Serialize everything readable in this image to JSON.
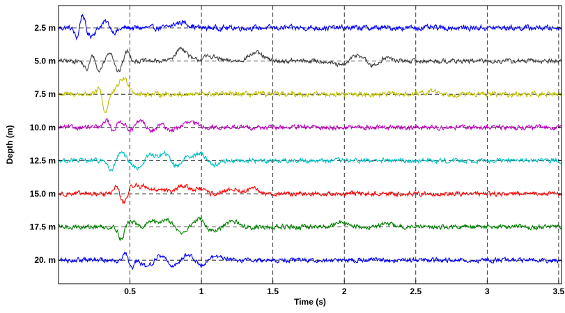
{
  "chart_data": {
    "type": "line",
    "title": "",
    "xlabel": "Time (s)",
    "ylabel": "Depth (m)",
    "xlim": [
      0,
      3.52
    ],
    "x_ticks": [
      0.5,
      1,
      1.5,
      2,
      2.5,
      3,
      3.5
    ],
    "x_tick_labels": [
      "0.5",
      "1",
      "1.5",
      "2",
      "2.5",
      "3",
      "3.5"
    ],
    "vertical_dashed_grid_at": [
      0.5,
      1,
      1.5,
      2,
      2.5,
      3,
      3.5
    ],
    "horizontal_dashed_baselines": true,
    "series": [
      {
        "label": "2.5 m",
        "color": "#0000ff",
        "peaks": [
          {
            "t": 0.16,
            "a": 1.5,
            "w": 0.02
          },
          {
            "t": 0.14,
            "a": -1.2,
            "w": 0.02
          },
          {
            "t": 0.22,
            "a": -0.5,
            "w": 0.03
          },
          {
            "t": 0.34,
            "a": 0.5,
            "w": 0.03
          },
          {
            "t": 0.38,
            "a": -0.4,
            "w": 0.03
          },
          {
            "t": 0.86,
            "a": 0.35,
            "w": 0.05
          }
        ],
        "noise": 0.14
      },
      {
        "label": "5.0 m",
        "color": "#404040",
        "peaks": [
          {
            "t": 0.2,
            "a": -0.6,
            "w": 0.02
          },
          {
            "t": 0.24,
            "a": 0.5,
            "w": 0.02
          },
          {
            "t": 0.28,
            "a": -0.7,
            "w": 0.02
          },
          {
            "t": 0.36,
            "a": 0.6,
            "w": 0.02
          },
          {
            "t": 0.42,
            "a": -0.7,
            "w": 0.02
          },
          {
            "t": 0.48,
            "a": 0.6,
            "w": 0.02
          },
          {
            "t": 0.86,
            "a": 0.8,
            "w": 0.04
          },
          {
            "t": 1.06,
            "a": 0.3,
            "w": 0.05
          },
          {
            "t": 1.38,
            "a": 0.5,
            "w": 0.05
          },
          {
            "t": 1.98,
            "a": -0.3,
            "w": 0.05
          },
          {
            "t": 2.1,
            "a": 0.45,
            "w": 0.05
          },
          {
            "t": 2.2,
            "a": -0.4,
            "w": 0.05
          },
          {
            "t": 2.28,
            "a": 0.3,
            "w": 0.04
          }
        ],
        "noise": 0.12
      },
      {
        "label": "7.5 m",
        "color": "#bfbf00",
        "peaks": [
          {
            "t": 0.3,
            "a": 0.9,
            "w": 0.02
          },
          {
            "t": 0.32,
            "a": -1.6,
            "w": 0.02
          },
          {
            "t": 0.44,
            "a": 0.7,
            "w": 0.03
          },
          {
            "t": 0.48,
            "a": 0.5,
            "w": 0.03
          },
          {
            "t": 2.62,
            "a": 0.2,
            "w": 0.04
          }
        ],
        "noise": 0.13
      },
      {
        "label": "10.0 m",
        "color": "#bf00bf",
        "peaks": [
          {
            "t": 0.34,
            "a": 0.6,
            "w": 0.02
          },
          {
            "t": 0.38,
            "a": -0.4,
            "w": 0.03
          },
          {
            "t": 0.44,
            "a": 0.55,
            "w": 0.04
          },
          {
            "t": 0.5,
            "a": -0.4,
            "w": 0.04
          },
          {
            "t": 0.58,
            "a": 0.6,
            "w": 0.04
          },
          {
            "t": 0.64,
            "a": -0.45,
            "w": 0.04
          },
          {
            "t": 0.72,
            "a": 0.3,
            "w": 0.04
          },
          {
            "t": 0.78,
            "a": -0.25,
            "w": 0.04
          },
          {
            "t": 0.92,
            "a": 0.3,
            "w": 0.05
          }
        ],
        "noise": 0.12
      },
      {
        "label": "12.5 m",
        "color": "#00bfbf",
        "peaks": [
          {
            "t": 0.37,
            "a": -0.7,
            "w": 0.02
          },
          {
            "t": 0.44,
            "a": 0.45,
            "w": 0.03
          },
          {
            "t": 0.55,
            "a": -0.45,
            "w": 0.04
          },
          {
            "t": 0.64,
            "a": 0.4,
            "w": 0.03
          },
          {
            "t": 0.75,
            "a": 0.5,
            "w": 0.04
          },
          {
            "t": 0.82,
            "a": -0.45,
            "w": 0.04
          },
          {
            "t": 0.9,
            "a": 0.3,
            "w": 0.04
          },
          {
            "t": 1.0,
            "a": 0.45,
            "w": 0.04
          },
          {
            "t": 1.08,
            "a": -0.3,
            "w": 0.04
          }
        ],
        "noise": 0.12
      },
      {
        "label": "15.0 m",
        "color": "#ff0000",
        "peaks": [
          {
            "t": 0.41,
            "a": 0.7,
            "w": 0.02
          },
          {
            "t": 0.45,
            "a": -0.65,
            "w": 0.03
          },
          {
            "t": 0.52,
            "a": 0.5,
            "w": 0.03
          },
          {
            "t": 0.6,
            "a": 0.45,
            "w": 0.04
          },
          {
            "t": 0.72,
            "a": 0.3,
            "w": 0.04
          },
          {
            "t": 0.87,
            "a": 0.5,
            "w": 0.04
          },
          {
            "t": 0.98,
            "a": 0.3,
            "w": 0.04
          },
          {
            "t": 1.22,
            "a": 0.3,
            "w": 0.04
          },
          {
            "t": 1.36,
            "a": 0.3,
            "w": 0.04
          }
        ],
        "noise": 0.12
      },
      {
        "label": "17.5 m",
        "color": "#008000",
        "peaks": [
          {
            "t": 0.44,
            "a": -0.8,
            "w": 0.02
          },
          {
            "t": 0.52,
            "a": 0.45,
            "w": 0.04
          },
          {
            "t": 0.58,
            "a": -0.3,
            "w": 0.04
          },
          {
            "t": 0.64,
            "a": 0.4,
            "w": 0.04
          },
          {
            "t": 0.76,
            "a": 0.5,
            "w": 0.04
          },
          {
            "t": 0.86,
            "a": -0.4,
            "w": 0.04
          },
          {
            "t": 0.98,
            "a": 0.5,
            "w": 0.04
          },
          {
            "t": 1.08,
            "a": -0.3,
            "w": 0.04
          },
          {
            "t": 1.22,
            "a": 0.35,
            "w": 0.04
          },
          {
            "t": 1.98,
            "a": 0.3,
            "w": 0.05
          },
          {
            "t": 2.3,
            "a": 0.2,
            "w": 0.05
          }
        ],
        "noise": 0.12
      },
      {
        "label": "20. m",
        "color": "#0000ff",
        "peaks": [
          {
            "t": 0.48,
            "a": 0.8,
            "w": 0.02
          },
          {
            "t": 0.5,
            "a": -0.9,
            "w": 0.02
          },
          {
            "t": 0.62,
            "a": -0.4,
            "w": 0.04
          },
          {
            "t": 0.72,
            "a": 0.35,
            "w": 0.04
          },
          {
            "t": 0.8,
            "a": -0.4,
            "w": 0.04
          },
          {
            "t": 0.9,
            "a": 0.35,
            "w": 0.04
          },
          {
            "t": 1.0,
            "a": -0.3,
            "w": 0.04
          },
          {
            "t": 1.1,
            "a": 0.25,
            "w": 0.05
          }
        ],
        "noise": 0.12
      }
    ]
  }
}
